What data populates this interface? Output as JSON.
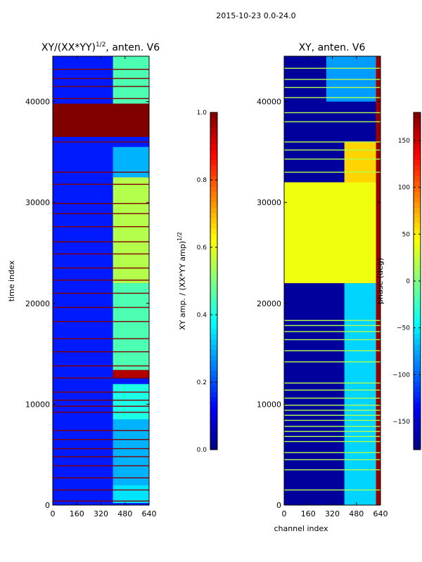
{
  "figure": {
    "suptitle": "2015-10-23 0.0-24.0"
  },
  "chart_data": [
    {
      "type": "heatmap",
      "title": "XY/(XX*YY)",
      "title_superscript": "1/2",
      "title_suffix": ", anten. V6",
      "xlabel": "",
      "ylabel": "time index",
      "x_range": [
        0,
        640
      ],
      "y_range": [
        0,
        44500
      ],
      "x_ticks": [
        0,
        160,
        320,
        480,
        640
      ],
      "y_ticks": [
        0,
        10000,
        20000,
        30000,
        40000
      ],
      "x_tick_labels": [
        "0",
        "160",
        "320",
        "480",
        "640"
      ],
      "y_tick_labels": [
        "0",
        "10000",
        "20000",
        "30000",
        "40000"
      ],
      "colorscale": "jet",
      "colorbar": {
        "label": "XY amp. / (XX*YY amp)",
        "label_superscript": "1/2",
        "range": [
          0.0,
          1.0
        ],
        "ticks": [
          0.0,
          0.2,
          0.4,
          0.6,
          0.8,
          1.0
        ],
        "tick_labels": [
          "0.0",
          "0.2",
          "0.4",
          "0.6",
          "0.8",
          "1.0"
        ]
      },
      "background_value": 0.15,
      "bands": [
        {
          "x": [
            400,
            640
          ],
          "t": [
            200,
            2000
          ],
          "v": 0.35
        },
        {
          "x": [
            400,
            640
          ],
          "t": [
            2000,
            8500
          ],
          "v": 0.3
        },
        {
          "x": [
            400,
            640
          ],
          "t": [
            8500,
            12000
          ],
          "v": 0.4
        },
        {
          "x": [
            400,
            640
          ],
          "t": [
            12600,
            13400
          ],
          "v": 0.95
        },
        {
          "x": [
            400,
            640
          ],
          "t": [
            13400,
            22000
          ],
          "v": 0.45
        },
        {
          "x": [
            400,
            640
          ],
          "t": [
            22000,
            32500
          ],
          "v": 0.55
        },
        {
          "x": [
            400,
            640
          ],
          "t": [
            32500,
            35500
          ],
          "v": 0.3
        },
        {
          "x": [
            0,
            640
          ],
          "t": [
            36500,
            39800
          ],
          "v": 1.0
        },
        {
          "x": [
            400,
            640
          ],
          "t": [
            39800,
            44500
          ],
          "v": 0.45
        }
      ],
      "flagged_rows": [
        400,
        1500,
        2700,
        3900,
        4800,
        5600,
        6500,
        7400,
        9200,
        9800,
        10400,
        11200,
        12600,
        13800,
        15200,
        16500,
        18200,
        19600,
        21000,
        22300,
        23500,
        24900,
        26100,
        27600,
        28900,
        29900,
        31800,
        33000,
        36000,
        40300,
        41500,
        42300,
        43200
      ]
    },
    {
      "type": "heatmap",
      "title": "XY, anten. V6",
      "xlabel": "channel index",
      "ylabel": "",
      "x_range": [
        0,
        640
      ],
      "y_range": [
        0,
        44500
      ],
      "x_ticks": [
        0,
        160,
        320,
        480,
        640
      ],
      "y_ticks": [
        0,
        10000,
        20000,
        30000,
        40000
      ],
      "x_tick_labels": [
        "0",
        "160",
        "320",
        "480",
        "640"
      ],
      "y_tick_labels": [
        "0",
        "10000",
        "20000",
        "30000",
        "40000"
      ],
      "colorscale": "jet",
      "colorbar": {
        "label": "phase (deg)",
        "range": [
          -180,
          180
        ],
        "ticks": [
          -150,
          -100,
          -50,
          0,
          50,
          100,
          150
        ],
        "tick_labels": [
          "−150",
          "−100",
          "−50",
          "0",
          "50",
          "100",
          "150"
        ]
      },
      "background_value": -170,
      "bands": [
        {
          "x": [
            400,
            640
          ],
          "t": [
            0,
            22000
          ],
          "v": -60
        },
        {
          "x": [
            0,
            640
          ],
          "t": [
            22000,
            32000
          ],
          "v": 40
        },
        {
          "x": [
            400,
            640
          ],
          "t": [
            32000,
            36000
          ],
          "v": 60
        },
        {
          "x": [
            280,
            640
          ],
          "t": [
            40000,
            44500
          ],
          "v": -80
        },
        {
          "x": [
            610,
            640
          ],
          "t": [
            0,
            44500
          ],
          "v": 170
        }
      ],
      "flagged_rows": [
        1500,
        3500,
        4500,
        5200,
        6300,
        6800,
        7300,
        7800,
        8400,
        8900,
        9400,
        9900,
        10600,
        11400,
        12100,
        14200,
        15300,
        16400,
        17200,
        17800,
        18300,
        33000,
        34300,
        35200,
        36000,
        38000,
        38900,
        40400,
        41400,
        42200,
        43300
      ]
    }
  ]
}
